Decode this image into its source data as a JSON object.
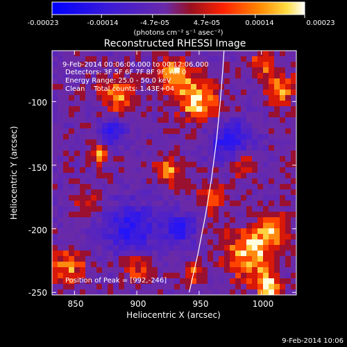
{
  "colorbar": {
    "tick_labels": [
      "-0.00023",
      "-0.00014",
      "-4.7e-05",
      "4.7e-05",
      "0.00014",
      "0.00023"
    ],
    "tick_values": [
      -0.00023,
      -0.00014,
      -4.7e-05,
      4.7e-05,
      0.00014,
      0.00023
    ],
    "range": [
      -0.00023,
      0.00023
    ],
    "units_label": "(photons cm⁻² s⁻¹ asec⁻²)"
  },
  "chart_data": {
    "type": "heatmap",
    "title": "Reconstructed RHESSI Image",
    "xlabel": "Heliocentric X (arcsec)",
    "ylabel": "Heliocentric Y (arcsec)",
    "xlim": [
      832,
      1028
    ],
    "ylim": [
      -252,
      -60
    ],
    "xticks": [
      850,
      900,
      950,
      1000
    ],
    "yticks": [
      -100,
      -150,
      -200,
      -250
    ],
    "xtick_labels": [
      "850",
      "900",
      "950",
      "1000"
    ],
    "ytick_labels": [
      "-100",
      "-150",
      "-200",
      "-250"
    ],
    "annotations": [
      "9-Feb-2014 00:06:06.000 to 00:12:06.000",
      "Detectors: 3F 5F 6F 7F 8F 9F, Att 0",
      "Energy Range: 25.0 - 50.0 keV",
      "Clean    Total counts: 1.43E+04"
    ],
    "peak_label": "Position of Peak = [992,-246]",
    "limb_curve": {
      "x": [
        942,
        949,
        955,
        960,
        964,
        967,
        969,
        970
      ],
      "y": [
        -250,
        -220,
        -190,
        -160,
        -130,
        -100,
        -75,
        -60
      ]
    },
    "colors": {
      "negative": "#2020ff",
      "zero": "#6a2aa8",
      "positive": "#ff4400",
      "max": "#ffffff"
    }
  },
  "footer": {
    "timestamp": "9-Feb-2014 10:06"
  }
}
